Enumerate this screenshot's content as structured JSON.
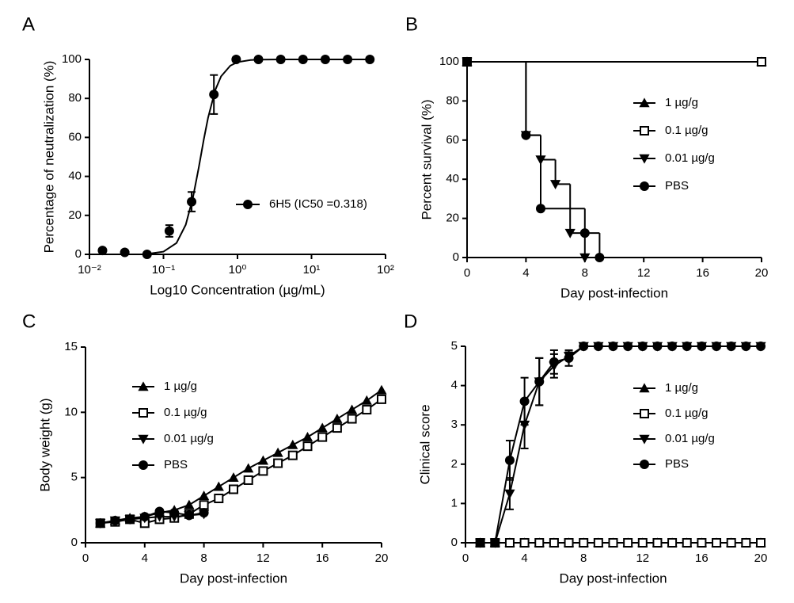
{
  "chart_data": [
    {
      "label": "A",
      "type": "scatter",
      "xscale": "log",
      "xlabel": "Log10 Concentration (µg/mL)",
      "ylabel": "Percentage of neutralization (%)",
      "xlim": [
        0.01,
        100
      ],
      "ylim": [
        0,
        100
      ],
      "xticks": [
        {
          "value": 0.01,
          "label": "10⁻²"
        },
        {
          "value": 0.1,
          "label": "10⁻¹"
        },
        {
          "value": 1,
          "label": "10⁰"
        },
        {
          "value": 10,
          "label": "10¹"
        },
        {
          "value": 100,
          "label": "10²"
        }
      ],
      "yticks": [
        0,
        20,
        40,
        60,
        80,
        100
      ],
      "series": [
        {
          "name": "6H5 (IC50 =0.318)",
          "color": "#000000",
          "marker": "circle",
          "x": [
            0.015,
            0.03,
            0.06,
            0.12,
            0.24,
            0.48,
            0.96,
            1.92,
            3.84,
            7.68,
            15.36,
            30.72,
            61.44
          ],
          "values": [
            2,
            1,
            0,
            12,
            27,
            82,
            100,
            100,
            100,
            100,
            100,
            100,
            100
          ],
          "errors": [
            0,
            0,
            0,
            3,
            5,
            10,
            0,
            0,
            0,
            0,
            0,
            0,
            0
          ],
          "curve": {
            "x": [
              0.06,
              0.1,
              0.15,
              0.2,
              0.25,
              0.3,
              0.35,
              0.4,
              0.5,
              0.6,
              0.8,
              1,
              1.5,
              2,
              4,
              8,
              16,
              32,
              64
            ],
            "values": [
              0.2,
              1.4,
              5.8,
              15.2,
              29.1,
              44.6,
              58.8,
              70,
              84.2,
              91.3,
              96.8,
              98.6,
              99.7,
              99.9,
              100,
              100,
              100,
              100,
              100
            ]
          }
        }
      ]
    },
    {
      "label": "B",
      "type": "step",
      "xlabel": "Day post-infection",
      "ylabel": "Percent survival (%)",
      "xlim": [
        0,
        20
      ],
      "ylim": [
        0,
        100
      ],
      "xticks": [
        0,
        4,
        8,
        12,
        16,
        20
      ],
      "yticks": [
        0,
        20,
        40,
        60,
        80,
        100
      ],
      "series": [
        {
          "name": "1 µg/g",
          "color": "#000000",
          "marker": "triangle-up",
          "x": [
            0,
            20
          ],
          "values": [
            100,
            100
          ]
        },
        {
          "name": "0.1 µg/g",
          "color": "#000000",
          "marker": "square-open",
          "x": [
            0,
            20
          ],
          "values": [
            100,
            100
          ]
        },
        {
          "name": "0.01 µg/g",
          "color": "#000000",
          "marker": "triangle-down",
          "x": [
            0,
            4,
            5,
            6,
            7,
            8
          ],
          "values": [
            100,
            62.5,
            50,
            37.5,
            12.5,
            0
          ]
        },
        {
          "name": "PBS",
          "color": "#000000",
          "marker": "circle",
          "x": [
            0,
            4,
            5,
            8,
            9
          ],
          "values": [
            100,
            62.5,
            25,
            12.5,
            0
          ]
        }
      ]
    },
    {
      "label": "C",
      "type": "line",
      "xlabel": "Day post-infection",
      "ylabel": "Body weight (g)",
      "xlim": [
        0,
        20
      ],
      "ylim": [
        0,
        15
      ],
      "xticks": [
        0,
        4,
        8,
        12,
        16,
        20
      ],
      "yticks": [
        0,
        5,
        10,
        15
      ],
      "series": [
        {
          "name": "1 µg/g",
          "color": "#000000",
          "marker": "triangle-up",
          "x": [
            1,
            2,
            3,
            4,
            5,
            6,
            7,
            8,
            9,
            10,
            11,
            12,
            13,
            14,
            15,
            16,
            17,
            18,
            19,
            20
          ],
          "values": [
            1.5,
            1.7,
            1.9,
            2.0,
            2.3,
            2.5,
            2.9,
            3.6,
            4.3,
            5.0,
            5.7,
            6.3,
            6.9,
            7.5,
            8.1,
            8.8,
            9.5,
            10.2,
            10.9,
            11.7
          ]
        },
        {
          "name": "0.1 µg/g",
          "color": "#000000",
          "marker": "square-open",
          "x": [
            1,
            2,
            3,
            4,
            5,
            6,
            7,
            8,
            9,
            10,
            11,
            12,
            13,
            14,
            15,
            16,
            17,
            18,
            19,
            20
          ],
          "values": [
            1.5,
            1.6,
            1.8,
            1.5,
            1.8,
            1.9,
            2.2,
            2.9,
            3.4,
            4.1,
            4.8,
            5.5,
            6.1,
            6.7,
            7.4,
            8.1,
            8.8,
            9.5,
            10.2,
            11.0
          ]
        },
        {
          "name": "0.01 µg/g",
          "color": "#000000",
          "marker": "triangle-down",
          "x": [
            1,
            2,
            3,
            4,
            5,
            6,
            7,
            8
          ],
          "values": [
            1.5,
            1.7,
            1.8,
            1.9,
            2.0,
            2.0,
            2.1,
            2.2
          ]
        },
        {
          "name": "PBS",
          "color": "#000000",
          "marker": "circle",
          "x": [
            1,
            2,
            3,
            4,
            5,
            6,
            7,
            8
          ],
          "values": [
            1.5,
            1.7,
            1.8,
            2.0,
            2.4,
            2.3,
            2.1,
            2.3
          ]
        }
      ]
    },
    {
      "label": "D",
      "type": "line",
      "xlabel": "Day post-infection",
      "ylabel": "Clinical score",
      "xlim": [
        0,
        20
      ],
      "ylim": [
        0,
        5
      ],
      "xticks": [
        0,
        4,
        8,
        12,
        16,
        20
      ],
      "yticks": [
        0,
        1,
        2,
        3,
        4,
        5
      ],
      "series": [
        {
          "name": "1 µg/g",
          "color": "#000000",
          "marker": "triangle-up",
          "x": [
            1,
            2,
            3,
            4,
            5,
            6,
            7,
            8,
            9,
            10,
            11,
            12,
            13,
            14,
            15,
            16,
            17,
            18,
            19,
            20
          ],
          "values": [
            0,
            0,
            0,
            0,
            0,
            0,
            0,
            0,
            0,
            0,
            0,
            0,
            0,
            0,
            0,
            0,
            0,
            0,
            0,
            0
          ]
        },
        {
          "name": "0.1 µg/g",
          "color": "#000000",
          "marker": "square-open",
          "x": [
            1,
            2,
            3,
            4,
            5,
            6,
            7,
            8,
            9,
            10,
            11,
            12,
            13,
            14,
            15,
            16,
            17,
            18,
            19,
            20
          ],
          "values": [
            0,
            0,
            0,
            0,
            0,
            0,
            0,
            0,
            0,
            0,
            0,
            0,
            0,
            0,
            0,
            0,
            0,
            0,
            0,
            0
          ]
        },
        {
          "name": "0.01 µg/g",
          "color": "#000000",
          "marker": "triangle-down",
          "x": [
            1,
            2,
            3,
            4,
            5,
            6,
            7,
            8,
            9,
            10,
            11,
            12,
            13,
            14,
            15,
            16,
            17,
            18,
            19,
            20
          ],
          "values": [
            0,
            0,
            1.25,
            3.0,
            4.1,
            4.5,
            4.75,
            5,
            5,
            5,
            5,
            5,
            5,
            5,
            5,
            5,
            5,
            5,
            5,
            5
          ],
          "errors": [
            0,
            0,
            0.4,
            0.6,
            0.6,
            0.3,
            0.1,
            0,
            0,
            0,
            0,
            0,
            0,
            0,
            0,
            0,
            0,
            0,
            0,
            0
          ]
        },
        {
          "name": "PBS",
          "color": "#000000",
          "marker": "circle",
          "x": [
            1,
            2,
            3,
            4,
            5,
            6,
            7,
            8,
            9,
            10,
            11,
            12,
            13,
            14,
            15,
            16,
            17,
            18,
            19,
            20
          ],
          "values": [
            0,
            0,
            2.1,
            3.6,
            4.1,
            4.6,
            4.7,
            5,
            5,
            5,
            5,
            5,
            5,
            5,
            5,
            5,
            5,
            5,
            5,
            5
          ],
          "errors": [
            0,
            0,
            0.5,
            0.6,
            0.6,
            0.3,
            0.2,
            0,
            0,
            0,
            0,
            0,
            0,
            0,
            0,
            0,
            0,
            0,
            0,
            0
          ]
        }
      ]
    }
  ]
}
